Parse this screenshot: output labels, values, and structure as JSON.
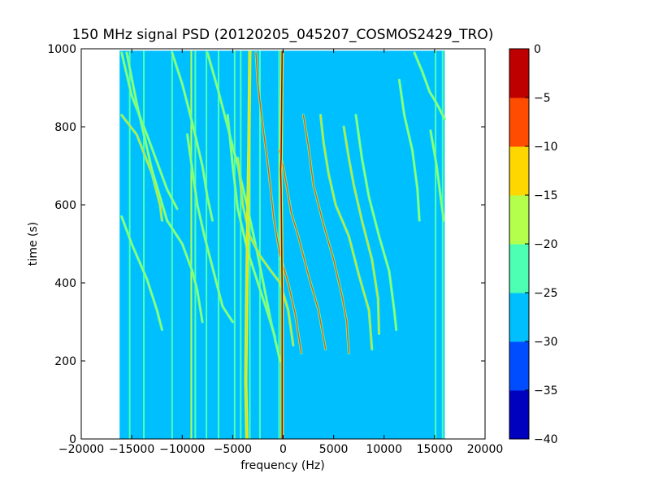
{
  "chart_data": {
    "type": "heatmap",
    "title": "150 MHz signal PSD (20120205_045207_COSMOS2429_TRO)",
    "xlabel": "frequency (Hz)",
    "ylabel": "time (s)",
    "xlim": [
      -20000,
      20000
    ],
    "ylim": [
      0,
      1000
    ],
    "x_ticks": [
      -20000,
      -15000,
      -10000,
      -5000,
      0,
      5000,
      10000,
      15000,
      20000
    ],
    "x_tick_labels": [
      "−20000",
      "−15000",
      "−10000",
      "−5000",
      "0",
      "5000",
      "10000",
      "15000",
      "20000"
    ],
    "y_ticks": [
      0,
      200,
      400,
      600,
      800,
      1000
    ],
    "y_tick_labels": [
      "0",
      "200",
      "400",
      "600",
      "800",
      "1000"
    ],
    "data_extent": {
      "x": [
        -16200,
        16000
      ],
      "y": [
        0,
        995
      ]
    },
    "background_level": -27.5,
    "colorbar": {
      "levels": [
        -40,
        -35,
        -30,
        -25,
        -20,
        -15,
        -10,
        -5,
        0
      ],
      "tick_labels": [
        "−40",
        "−35",
        "−30",
        "−25",
        "−20",
        "−15",
        "−10",
        "−5",
        "0"
      ],
      "colors": [
        "#0000bf",
        "#004cff",
        "#00bfff",
        "#4cffb3",
        "#b3ff4c",
        "#ffd700",
        "#ff4c00",
        "#bf0000"
      ]
    },
    "vertical_lines": [
      {
        "freq": -15200,
        "level": -22
      },
      {
        "freq": -13800,
        "level": -24
      },
      {
        "freq": -11000,
        "level": -22
      },
      {
        "freq": -9100,
        "level": -20
      },
      {
        "freq": -8700,
        "level": -21
      },
      {
        "freq": -7600,
        "level": -24
      },
      {
        "freq": -6400,
        "level": -24
      },
      {
        "freq": -4800,
        "level": -22
      },
      {
        "freq": -4200,
        "level": -23
      },
      {
        "freq": -3300,
        "level": -22
      },
      {
        "freq": -2300,
        "level": -23
      },
      {
        "freq": -400,
        "level": -23
      },
      {
        "freq": 15100,
        "level": -24
      },
      {
        "freq": 15800,
        "level": -24
      }
    ],
    "special_lines": [
      {
        "name": "carrier",
        "level": -3,
        "points": [
          [
            -100,
            0
          ],
          [
            -100,
            380
          ],
          [
            -200,
            640
          ],
          [
            -250,
            690
          ],
          [
            -200,
            720
          ],
          [
            -100,
            995
          ]
        ]
      },
      {
        "name": "near-carrier",
        "level": -15,
        "points": [
          [
            -3600,
            0
          ],
          [
            -3700,
            150
          ],
          [
            -3600,
            400
          ],
          [
            -3400,
            750
          ],
          [
            -3300,
            995
          ]
        ]
      }
    ],
    "doppler_tracks": [
      {
        "level": -12,
        "points": [
          [
            -16000,
            830
          ],
          [
            -14500,
            780
          ],
          [
            -13000,
            680
          ],
          [
            -12200,
            600
          ],
          [
            -12000,
            560
          ]
        ]
      },
      {
        "level": -18,
        "points": [
          [
            -16000,
            570
          ],
          [
            -15000,
            500
          ],
          [
            -13500,
            410
          ],
          [
            -12500,
            330
          ],
          [
            -12000,
            280
          ]
        ]
      },
      {
        "level": -20,
        "points": [
          [
            -16000,
            990
          ],
          [
            -15000,
            880
          ],
          [
            -13500,
            780
          ],
          [
            -11500,
            640
          ],
          [
            -10500,
            590
          ]
        ]
      },
      {
        "level": -18,
        "points": [
          [
            -15500,
            990
          ],
          [
            -14500,
            860
          ],
          [
            -13000,
            690
          ],
          [
            -11500,
            560
          ],
          [
            -10000,
            500
          ],
          [
            -9000,
            430
          ],
          [
            -8500,
            380
          ],
          [
            -8000,
            300
          ]
        ]
      },
      {
        "level": -20,
        "points": [
          [
            -11000,
            990
          ],
          [
            -10000,
            910
          ],
          [
            -9000,
            810
          ],
          [
            -8000,
            700
          ],
          [
            -7500,
            620
          ],
          [
            -7000,
            560
          ]
        ]
      },
      {
        "level": -18,
        "points": [
          [
            -9500,
            780
          ],
          [
            -9000,
            690
          ],
          [
            -8500,
            600
          ],
          [
            -7800,
            520
          ],
          [
            -7000,
            440
          ],
          [
            -6000,
            340
          ],
          [
            -5000,
            300
          ]
        ]
      },
      {
        "level": -20,
        "points": [
          [
            -7500,
            990
          ],
          [
            -6500,
            900
          ],
          [
            -5500,
            800
          ],
          [
            -4500,
            700
          ],
          [
            -3500,
            590
          ],
          [
            -2500,
            470
          ],
          [
            -1200,
            300
          ],
          [
            -300,
            200
          ]
        ]
      },
      {
        "level": -18,
        "points": [
          [
            -5500,
            830
          ],
          [
            -5000,
            700
          ],
          [
            -4500,
            590
          ],
          [
            -3500,
            480
          ],
          [
            -2500,
            400
          ],
          [
            -1500,
            320
          ],
          [
            -800,
            260
          ]
        ]
      },
      {
        "level": -12,
        "points": [
          [
            -4500,
            720
          ],
          [
            -4000,
            600
          ],
          [
            -3300,
            520
          ],
          [
            -2300,
            470
          ],
          [
            -1200,
            430
          ],
          [
            -300,
            400
          ],
          [
            500,
            330
          ],
          [
            1000,
            240
          ]
        ]
      },
      {
        "level": -6,
        "points": [
          [
            -2700,
            990
          ],
          [
            -2500,
            910
          ],
          [
            -2000,
            800
          ],
          [
            -1500,
            700
          ],
          [
            -900,
            560
          ],
          [
            -300,
            470
          ],
          [
            500,
            400
          ],
          [
            1200,
            320
          ],
          [
            1800,
            220
          ]
        ]
      },
      {
        "level": -8,
        "points": [
          [
            -400,
            740
          ],
          [
            0,
            700
          ],
          [
            400,
            640
          ],
          [
            800,
            580
          ],
          [
            1500,
            520
          ],
          [
            2500,
            420
          ],
          [
            3500,
            330
          ],
          [
            4200,
            230
          ]
        ]
      },
      {
        "level": -10,
        "points": [
          [
            2000,
            830
          ],
          [
            2500,
            750
          ],
          [
            3000,
            650
          ],
          [
            4000,
            550
          ],
          [
            5000,
            460
          ],
          [
            5800,
            370
          ],
          [
            6300,
            300
          ],
          [
            6500,
            220
          ]
        ]
      },
      {
        "level": -14,
        "points": [
          [
            3700,
            830
          ],
          [
            4000,
            760
          ],
          [
            4500,
            680
          ],
          [
            5200,
            600
          ],
          [
            6500,
            520
          ],
          [
            7500,
            420
          ],
          [
            8500,
            330
          ],
          [
            8800,
            230
          ]
        ]
      },
      {
        "level": -14,
        "points": [
          [
            6000,
            800
          ],
          [
            6500,
            720
          ],
          [
            7000,
            650
          ],
          [
            7800,
            560
          ],
          [
            8800,
            460
          ],
          [
            9400,
            360
          ],
          [
            9500,
            270
          ]
        ]
      },
      {
        "level": -18,
        "points": [
          [
            7200,
            830
          ],
          [
            7800,
            720
          ],
          [
            8500,
            620
          ],
          [
            9500,
            520
          ],
          [
            10500,
            430
          ],
          [
            11000,
            330
          ],
          [
            11200,
            280
          ]
        ]
      },
      {
        "level": -16,
        "points": [
          [
            13000,
            990
          ],
          [
            13800,
            940
          ],
          [
            14500,
            890
          ],
          [
            15200,
            860
          ],
          [
            16000,
            820
          ]
        ]
      },
      {
        "level": -20,
        "points": [
          [
            11500,
            920
          ],
          [
            12000,
            830
          ],
          [
            12800,
            740
          ],
          [
            13300,
            640
          ],
          [
            13500,
            560
          ]
        ]
      },
      {
        "level": -20,
        "points": [
          [
            14600,
            790
          ],
          [
            15200,
            700
          ],
          [
            15600,
            620
          ],
          [
            15900,
            560
          ]
        ]
      }
    ]
  }
}
